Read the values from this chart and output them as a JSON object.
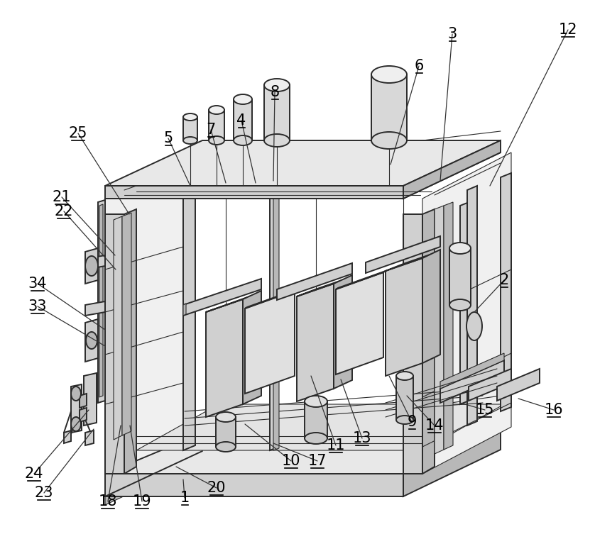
{
  "bg_color": "#ffffff",
  "line_color": "#2a2a2a",
  "lw": 1.4,
  "lw_thin": 0.8,
  "lw_thick": 2.0,
  "figsize": [
    8.38,
    7.6
  ],
  "dpi": 100,
  "gray_light": "#e8e8e8",
  "gray_mid": "#d0d0d0",
  "gray_dark": "#b8b8b8",
  "gray_fill": "#c8c8c8",
  "labels": [
    [
      "1",
      260,
      702,
      258,
      676
    ],
    [
      "2",
      710,
      395,
      668,
      440
    ],
    [
      "3",
      637,
      48,
      620,
      255
    ],
    [
      "4",
      340,
      170,
      360,
      258
    ],
    [
      "5",
      237,
      195,
      268,
      262
    ],
    [
      "6",
      590,
      93,
      550,
      232
    ],
    [
      "7",
      297,
      183,
      318,
      258
    ],
    [
      "8",
      387,
      130,
      385,
      255
    ],
    [
      "9",
      580,
      595,
      548,
      530
    ],
    [
      "10",
      410,
      650,
      345,
      598
    ],
    [
      "11",
      473,
      628,
      438,
      530
    ],
    [
      "12",
      800,
      42,
      690,
      262
    ],
    [
      "13",
      510,
      618,
      480,
      535
    ],
    [
      "14",
      612,
      600,
      573,
      558
    ],
    [
      "15",
      683,
      578,
      648,
      568
    ],
    [
      "16",
      780,
      578,
      730,
      562
    ],
    [
      "17",
      447,
      650,
      385,
      625
    ],
    [
      "18",
      152,
      707,
      170,
      600
    ],
    [
      "19",
      200,
      707,
      183,
      600
    ],
    [
      "20",
      305,
      688,
      248,
      658
    ],
    [
      "21",
      87,
      278,
      162,
      360
    ],
    [
      "22",
      90,
      298,
      163,
      380
    ],
    [
      "23",
      62,
      695,
      132,
      605
    ],
    [
      "24",
      48,
      668,
      125,
      578
    ],
    [
      "25",
      110,
      188,
      182,
      302
    ],
    [
      "33",
      53,
      432,
      148,
      488
    ],
    [
      "34",
      53,
      400,
      148,
      465
    ]
  ]
}
